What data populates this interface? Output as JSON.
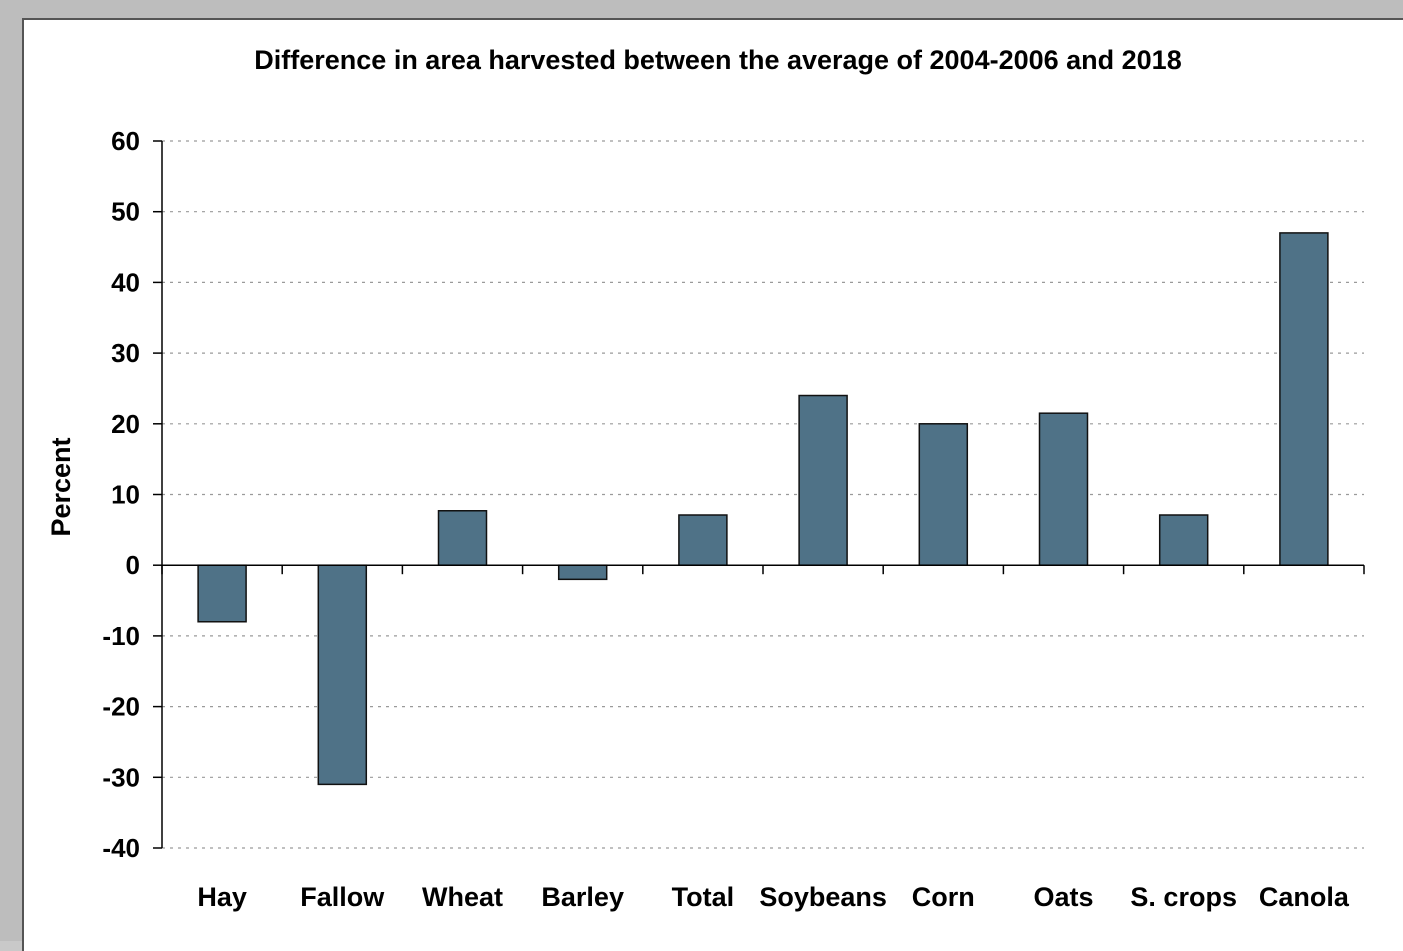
{
  "chart_data": {
    "type": "bar",
    "title": "Difference in area harvested between the average of 2004-2006 and 2018",
    "xlabel": "",
    "ylabel": "Percent",
    "categories": [
      "Hay",
      "Fallow",
      "Wheat",
      "Barley",
      "Total",
      "Soybeans",
      "Corn",
      "Oats",
      "S. crops",
      "Canola"
    ],
    "values": [
      -8,
      -31,
      7.7,
      -2,
      7.1,
      24,
      20,
      21.5,
      7.1,
      47
    ],
    "ylim": [
      -40,
      60
    ],
    "yticks": [
      60,
      50,
      40,
      30,
      20,
      10,
      0,
      -10,
      -20,
      -30,
      -40
    ],
    "grid": true,
    "legend": "none",
    "bar_color": "#4f7287"
  }
}
